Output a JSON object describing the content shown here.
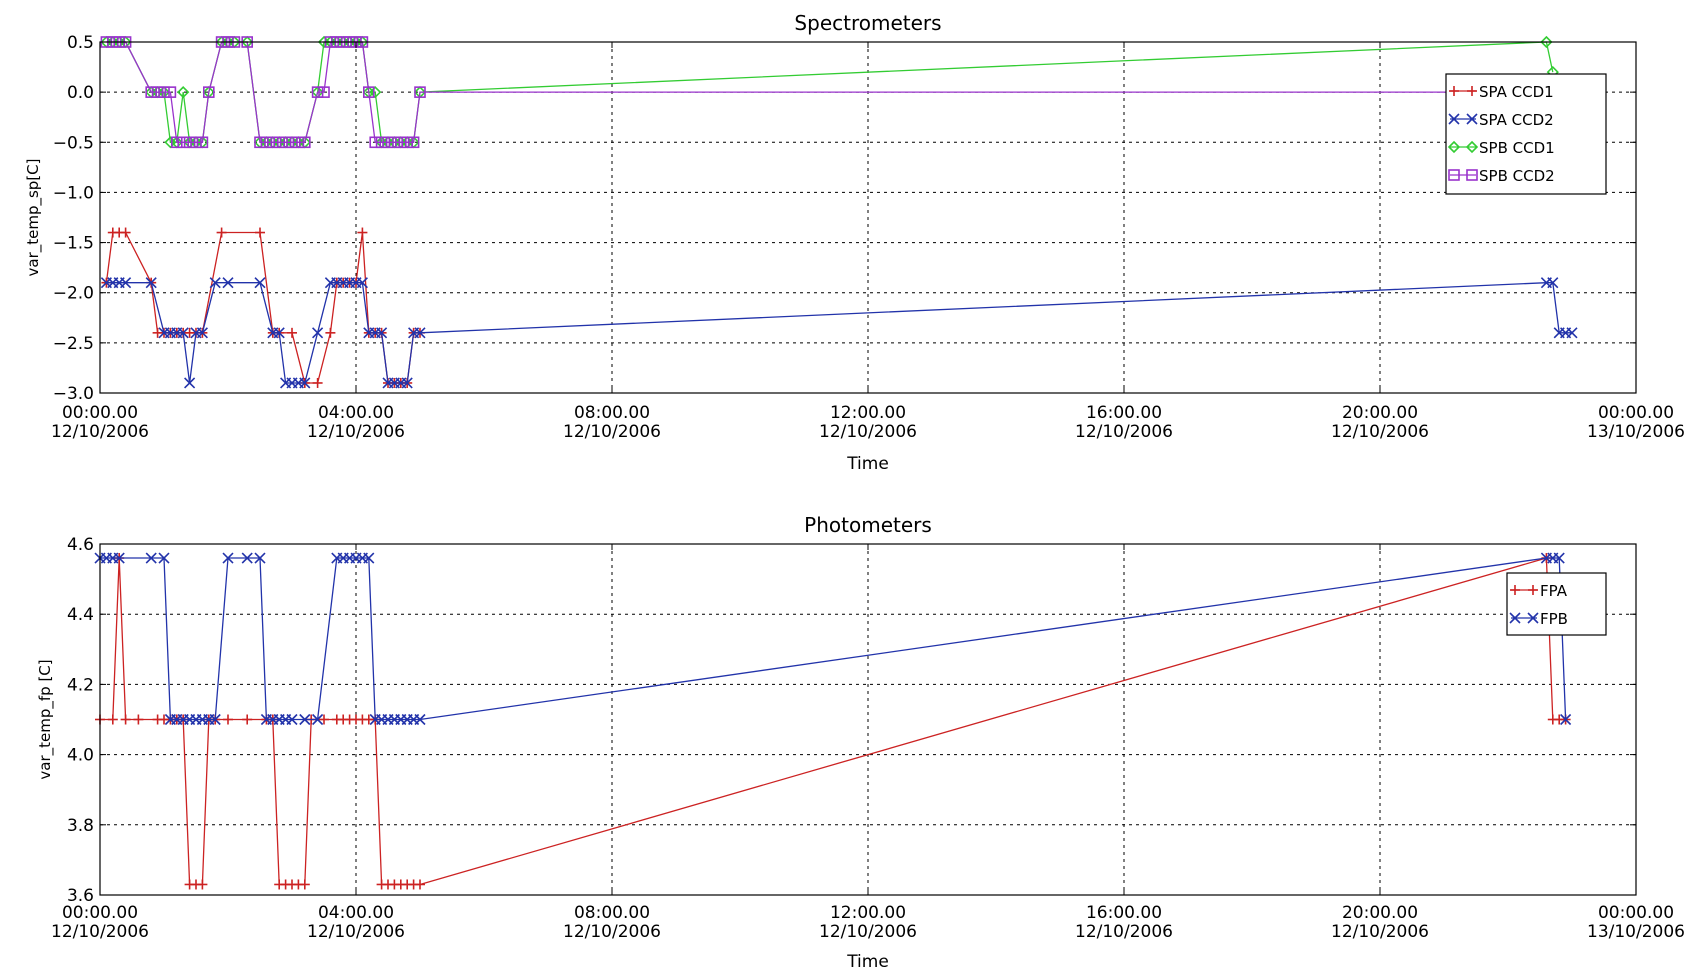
{
  "chart_data": [
    {
      "type": "line",
      "title": "Spectrometers",
      "xlabel": "Time",
      "ylabel": "var_temp_sp[C]",
      "ylim": [
        -3.0,
        0.5
      ],
      "yticks": [
        0.5,
        0.0,
        -0.5,
        -1.0,
        -1.5,
        -2.0,
        -2.5,
        -3.0
      ],
      "ytick_labels": [
        "0.5",
        "0.0",
        "−0.5",
        "−1.0",
        "−1.5",
        "−2.0",
        "−2.5",
        "−3.0"
      ],
      "xlim": [
        0,
        24
      ],
      "xticks": [
        0,
        4,
        8,
        12,
        16,
        20,
        24
      ],
      "xtick_labels": [
        [
          "00:00.00",
          "12/10/2006"
        ],
        [
          "04:00.00",
          "12/10/2006"
        ],
        [
          "08:00.00",
          "12/10/2006"
        ],
        [
          "12:00.00",
          "12/10/2006"
        ],
        [
          "16:00.00",
          "12/10/2006"
        ],
        [
          "20:00.00",
          "12/10/2006"
        ],
        [
          "00:00.00",
          "13/10/2006"
        ]
      ],
      "grid": true,
      "legend_position": "upper-right",
      "series": [
        {
          "name": "SPA CCD1",
          "color": "#cc2222",
          "marker": "plus",
          "x": [
            0.1,
            0.2,
            0.3,
            0.4,
            0.8,
            0.9,
            1.0,
            1.1,
            1.2,
            1.3,
            1.4,
            1.5,
            1.6,
            1.9,
            2.5,
            2.7,
            2.8,
            3.0,
            3.2,
            3.4,
            3.6,
            3.7,
            3.8,
            3.9,
            4.0,
            4.1,
            4.2,
            4.3,
            4.4,
            4.5,
            4.6,
            4.7,
            4.8,
            4.9,
            5.0
          ],
          "y": [
            -1.9,
            -1.4,
            -1.4,
            -1.4,
            -1.9,
            -2.4,
            -2.4,
            -2.4,
            -2.4,
            -2.4,
            -2.4,
            -2.4,
            -2.4,
            -1.4,
            -1.4,
            -2.4,
            -2.4,
            -2.4,
            -2.9,
            -2.9,
            -2.4,
            -1.9,
            -1.9,
            -1.9,
            -1.9,
            -1.4,
            -2.4,
            -2.4,
            -2.4,
            -2.9,
            -2.9,
            -2.9,
            -2.9,
            -2.4,
            -2.4
          ]
        },
        {
          "name": "SPA CCD2",
          "color": "#2233aa",
          "marker": "x",
          "x": [
            0.1,
            0.2,
            0.3,
            0.4,
            0.8,
            1.0,
            1.1,
            1.2,
            1.3,
            1.4,
            1.5,
            1.6,
            1.8,
            2.0,
            2.5,
            2.7,
            2.8,
            2.9,
            3.0,
            3.1,
            3.2,
            3.4,
            3.6,
            3.7,
            3.8,
            3.9,
            4.0,
            4.1,
            4.2,
            4.3,
            4.4,
            4.5,
            4.6,
            4.7,
            4.8,
            4.9,
            5.0,
            22.6,
            22.7,
            22.8,
            22.9,
            23.0
          ],
          "y": [
            -1.9,
            -1.9,
            -1.9,
            -1.9,
            -1.9,
            -2.4,
            -2.4,
            -2.4,
            -2.4,
            -2.9,
            -2.4,
            -2.4,
            -1.9,
            -1.9,
            -1.9,
            -2.4,
            -2.4,
            -2.9,
            -2.9,
            -2.9,
            -2.9,
            -2.4,
            -1.9,
            -1.9,
            -1.9,
            -1.9,
            -1.9,
            -1.9,
            -2.4,
            -2.4,
            -2.4,
            -2.9,
            -2.9,
            -2.9,
            -2.9,
            -2.4,
            -2.4,
            -1.9,
            -1.9,
            -2.4,
            -2.4,
            -2.4
          ]
        },
        {
          "name": "SPB CCD1",
          "color": "#33cc33",
          "marker": "diamond",
          "x": [
            0.1,
            0.2,
            0.3,
            0.4,
            0.8,
            0.9,
            1.0,
            1.1,
            1.2,
            1.3,
            1.4,
            1.5,
            1.6,
            1.7,
            1.9,
            2.0,
            2.1,
            2.3,
            2.5,
            2.6,
            2.7,
            2.8,
            2.9,
            3.0,
            3.1,
            3.2,
            3.4,
            3.5,
            3.6,
            3.7,
            3.8,
            3.9,
            4.0,
            4.1,
            4.2,
            4.3,
            4.4,
            4.5,
            4.6,
            4.7,
            4.8,
            4.9,
            5.0,
            22.6,
            22.7
          ],
          "y": [
            0.5,
            0.5,
            0.5,
            0.5,
            0.0,
            0.0,
            0.0,
            -0.5,
            -0.5,
            0.0,
            -0.5,
            -0.5,
            -0.5,
            0.0,
            0.5,
            0.5,
            0.5,
            0.5,
            -0.5,
            -0.5,
            -0.5,
            -0.5,
            -0.5,
            -0.5,
            -0.5,
            -0.5,
            0.0,
            0.5,
            0.5,
            0.5,
            0.5,
            0.5,
            0.5,
            0.5,
            0.0,
            0.0,
            -0.5,
            -0.5,
            -0.5,
            -0.5,
            -0.5,
            -0.5,
            0.0,
            0.5,
            0.2
          ]
        },
        {
          "name": "SPB CCD2",
          "color": "#9933cc",
          "marker": "square",
          "x": [
            0.1,
            0.2,
            0.3,
            0.4,
            0.8,
            0.9,
            1.0,
            1.1,
            1.2,
            1.3,
            1.4,
            1.5,
            1.6,
            1.7,
            1.9,
            2.0,
            2.1,
            2.3,
            2.5,
            2.6,
            2.7,
            2.8,
            2.9,
            3.0,
            3.1,
            3.2,
            3.4,
            3.5,
            3.6,
            3.7,
            3.8,
            3.9,
            4.0,
            4.1,
            4.2,
            4.3,
            4.4,
            4.5,
            4.6,
            4.7,
            4.8,
            4.9,
            5.0,
            22.6,
            22.7
          ],
          "y": [
            0.5,
            0.5,
            0.5,
            0.5,
            0.0,
            0.0,
            0.0,
            0.0,
            -0.5,
            -0.5,
            -0.5,
            -0.5,
            -0.5,
            0.0,
            0.5,
            0.5,
            0.5,
            0.5,
            -0.5,
            -0.5,
            -0.5,
            -0.5,
            -0.5,
            -0.5,
            -0.5,
            -0.5,
            0.0,
            0.0,
            0.5,
            0.5,
            0.5,
            0.5,
            0.5,
            0.5,
            0.0,
            -0.5,
            -0.5,
            -0.5,
            -0.5,
            -0.5,
            -0.5,
            -0.5,
            0.0,
            0.0,
            0.0
          ]
        }
      ]
    },
    {
      "type": "line",
      "title": "Photometers",
      "xlabel": "Time",
      "ylabel": "var_temp_fp [C]",
      "ylim": [
        3.6,
        4.6
      ],
      "yticks": [
        4.6,
        4.4,
        4.2,
        4.0,
        3.8,
        3.6
      ],
      "ytick_labels": [
        "4.6",
        "4.4",
        "4.2",
        "4.0",
        "3.8",
        "3.6"
      ],
      "xlim": [
        0,
        24
      ],
      "xticks": [
        0,
        4,
        8,
        12,
        16,
        20,
        24
      ],
      "xtick_labels": [
        [
          "00:00.00",
          "12/10/2006"
        ],
        [
          "04:00.00",
          "12/10/2006"
        ],
        [
          "08:00.00",
          "12/10/2006"
        ],
        [
          "12:00.00",
          "12/10/2006"
        ],
        [
          "16:00.00",
          "12/10/2006"
        ],
        [
          "20:00.00",
          "12/10/2006"
        ],
        [
          "00:00.00",
          "13/10/2006"
        ]
      ],
      "grid": true,
      "legend_position": "upper-right",
      "series": [
        {
          "name": "FPA",
          "color": "#cc2222",
          "marker": "plus",
          "x": [
            0.0,
            0.2,
            0.3,
            0.4,
            0.6,
            0.9,
            1.0,
            1.1,
            1.2,
            1.3,
            1.4,
            1.5,
            1.6,
            1.7,
            1.8,
            2.0,
            2.3,
            2.6,
            2.7,
            2.8,
            2.9,
            3.0,
            3.1,
            3.2,
            3.3,
            3.5,
            3.7,
            3.8,
            3.9,
            4.0,
            4.1,
            4.2,
            4.3,
            4.4,
            4.5,
            4.6,
            4.7,
            4.8,
            4.9,
            5.0,
            22.6,
            22.7,
            22.8,
            22.9
          ],
          "y": [
            4.1,
            4.1,
            4.56,
            4.1,
            4.1,
            4.1,
            4.1,
            4.1,
            4.1,
            4.1,
            3.63,
            3.63,
            3.63,
            4.1,
            4.1,
            4.1,
            4.1,
            4.1,
            4.1,
            3.63,
            3.63,
            3.63,
            3.63,
            3.63,
            4.1,
            4.1,
            4.1,
            4.1,
            4.1,
            4.1,
            4.1,
            4.1,
            4.1,
            3.63,
            3.63,
            3.63,
            3.63,
            3.63,
            3.63,
            3.63,
            4.56,
            4.1,
            4.1,
            4.1
          ]
        },
        {
          "name": "FPB",
          "color": "#2233aa",
          "marker": "x",
          "x": [
            0.0,
            0.1,
            0.2,
            0.3,
            0.8,
            1.0,
            1.1,
            1.2,
            1.3,
            1.4,
            1.5,
            1.6,
            1.7,
            1.8,
            2.0,
            2.3,
            2.5,
            2.6,
            2.7,
            2.8,
            2.9,
            3.0,
            3.2,
            3.4,
            3.7,
            3.8,
            3.9,
            4.0,
            4.1,
            4.2,
            4.3,
            4.4,
            4.5,
            4.6,
            4.7,
            4.8,
            4.9,
            5.0,
            22.6,
            22.7,
            22.8,
            22.9
          ],
          "y": [
            4.56,
            4.56,
            4.56,
            4.56,
            4.56,
            4.56,
            4.1,
            4.1,
            4.1,
            4.1,
            4.1,
            4.1,
            4.1,
            4.1,
            4.56,
            4.56,
            4.56,
            4.1,
            4.1,
            4.1,
            4.1,
            4.1,
            4.1,
            4.1,
            4.56,
            4.56,
            4.56,
            4.56,
            4.56,
            4.56,
            4.1,
            4.1,
            4.1,
            4.1,
            4.1,
            4.1,
            4.1,
            4.1,
            4.56,
            4.56,
            4.56,
            4.1
          ]
        }
      ]
    }
  ]
}
